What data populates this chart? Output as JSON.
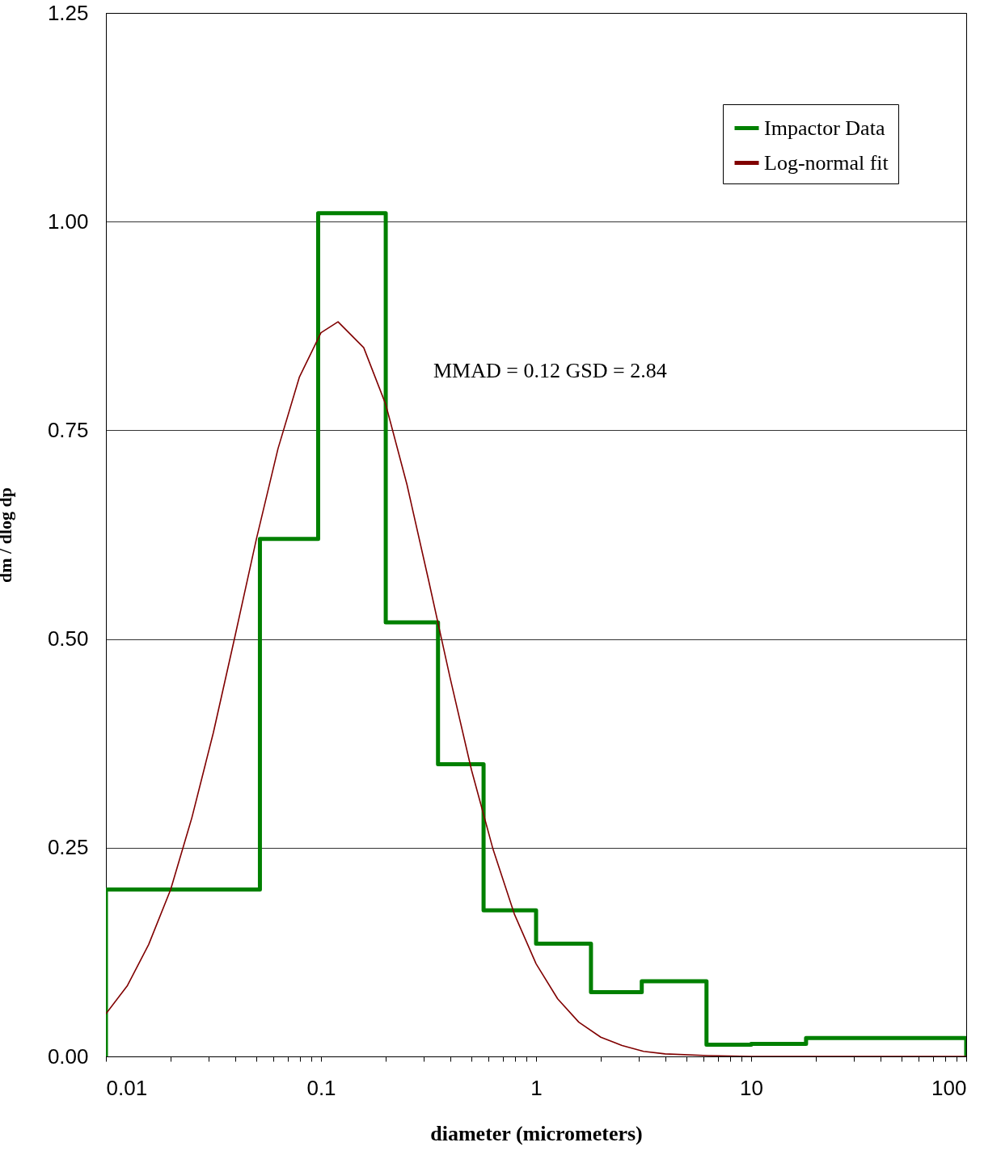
{
  "chart_data": {
    "type": "step",
    "xlabel": "diameter (micrometers)",
    "ylabel": "dm / dlog dp",
    "log": "x",
    "grid": "y",
    "legend": "top right",
    "annotations": [
      "MMAD = 0.12   GSD = 2.84"
    ],
    "xlim": [
      0.01,
      100
    ],
    "ylim": [
      0,
      1.25
    ],
    "xticks": [
      0.01,
      {
        "value": 0.02,
        "label": null
      },
      {
        "value": 0.03,
        "label": null
      },
      {
        "value": 0.04,
        "label": null
      },
      {
        "value": 0.05,
        "label": null
      },
      {
        "value": 0.06,
        "label": null
      },
      {
        "value": 0.07,
        "label": null
      },
      {
        "value": 0.08,
        "label": null
      },
      {
        "value": 0.09,
        "label": null
      },
      0.1,
      {
        "value": 0.2,
        "label": null
      },
      {
        "value": 0.3,
        "label": null
      },
      {
        "value": 0.4,
        "label": null
      },
      {
        "value": 0.5,
        "label": null
      },
      {
        "value": 0.6,
        "label": null
      },
      {
        "value": 0.7,
        "label": null
      },
      {
        "value": 0.8,
        "label": null
      },
      {
        "value": 0.9,
        "label": null
      },
      1,
      {
        "value": 2,
        "label": null
      },
      {
        "value": 3,
        "label": null
      },
      {
        "value": 4,
        "label": null
      },
      {
        "value": 5,
        "label": null
      },
      {
        "value": 6,
        "label": null
      },
      {
        "value": 7,
        "label": null
      },
      {
        "value": 8,
        "label": null
      },
      {
        "value": 9,
        "label": null
      },
      10,
      {
        "value": 20,
        "label": null
      },
      {
        "value": 30,
        "label": null
      },
      {
        "value": 40,
        "label": null
      },
      {
        "value": 50,
        "label": null
      },
      {
        "value": 60,
        "label": null
      },
      {
        "value": 70,
        "label": null
      },
      {
        "value": 80,
        "label": null
      },
      {
        "value": 90,
        "label": null
      },
      100
    ],
    "yticks": [
      {
        "value": 0,
        "label": "0.00"
      },
      0.25,
      {
        "value": 0.5,
        "label": "0.50"
      },
      0.75,
      {
        "value": 1,
        "label": "1.00"
      },
      1.25
    ],
    "series": [
      {
        "name": "Impactor Data",
        "color": "#008000",
        "x": [
          0.01,
          0.01,
          0.052,
          0.097,
          0.2,
          0.35,
          0.57,
          1,
          1.8,
          3.1,
          6.2,
          10,
          18,
          100
        ],
        "values": [
          0,
          0.2,
          0.62,
          1.01,
          0.52,
          0.35,
          0.175,
          0.135,
          0.077,
          0.09,
          0.014,
          0.015,
          0.022,
          0
        ]
      },
      {
        "name": "Log-normal fit",
        "type": "line",
        "color": "#800000",
        "x": [
          0.01,
          0.0126,
          0.0158,
          0.02,
          0.0251,
          0.0316,
          0.0398,
          0.0501,
          0.0631,
          0.0794,
          0.1,
          0.12,
          0.158,
          0.2,
          0.251,
          0.316,
          0.398,
          0.501,
          0.631,
          0.794,
          1,
          1.26,
          1.58,
          2,
          2.51,
          3.16,
          3.98,
          6.31,
          10,
          100
        ],
        "values": [
          0.051,
          0.085,
          0.134,
          0.2,
          0.286,
          0.388,
          0.503,
          0.62,
          0.728,
          0.814,
          0.867,
          0.88,
          0.849,
          0.781,
          0.685,
          0.571,
          0.454,
          0.343,
          0.248,
          0.17,
          0.111,
          0.069,
          0.041,
          0.023,
          0.013,
          0.006,
          0.003,
          0.001,
          0,
          0
        ]
      }
    ]
  }
}
